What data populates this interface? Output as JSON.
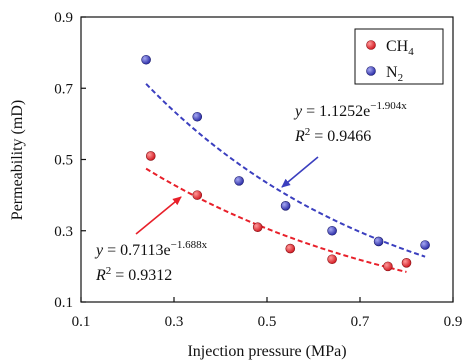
{
  "chart_data": {
    "type": "scatter",
    "xlabel": "Injection pressure (MPa)",
    "ylabel": "Permeability (mD)",
    "xlim": [
      0.1,
      0.9
    ],
    "ylim": [
      0.1,
      0.9
    ],
    "xticks": [
      "0.1",
      "0.3",
      "0.5",
      "0.7",
      "0.9"
    ],
    "yticks": [
      "0.1",
      "0.3",
      "0.5",
      "0.7",
      "0.9"
    ],
    "xtick_values": [
      0.1,
      0.3,
      0.5,
      0.7,
      0.9
    ],
    "ytick_values": [
      0.1,
      0.3,
      0.5,
      0.7,
      0.9
    ],
    "grid": false,
    "legend_position": "top-right",
    "series": [
      {
        "name": "CH4",
        "name_base": "CH",
        "name_sub": "4",
        "color": "#e8202a",
        "x": [
          0.25,
          0.35,
          0.48,
          0.55,
          0.64,
          0.76,
          0.8
        ],
        "y": [
          0.51,
          0.4,
          0.31,
          0.25,
          0.22,
          0.2,
          0.21
        ],
        "fit": {
          "a": 0.7113,
          "b": -1.688,
          "x_range": [
            0.24,
            0.8
          ],
          "equation": {
            "y": "y",
            "eq": " = 0.7113e",
            "exp": "−1.688x"
          },
          "r2": {
            "r": "R",
            "sup": "2",
            "rest": " = 0.9312"
          }
        }
      },
      {
        "name": "N2",
        "name_base": "N",
        "name_sub": "2",
        "color": "#3b3fbf",
        "x": [
          0.24,
          0.35,
          0.44,
          0.54,
          0.64,
          0.74,
          0.84
        ],
        "y": [
          0.78,
          0.62,
          0.44,
          0.37,
          0.3,
          0.27,
          0.26
        ],
        "fit": {
          "a": 1.1252,
          "b": -1.904,
          "x_range": [
            0.24,
            0.84
          ],
          "equation": {
            "y": "y",
            "eq": " = 1.1252e",
            "exp": "−1.904x"
          },
          "r2": {
            "r": "R",
            "sup": "2",
            "rest": " = 0.9466"
          }
        }
      }
    ]
  }
}
